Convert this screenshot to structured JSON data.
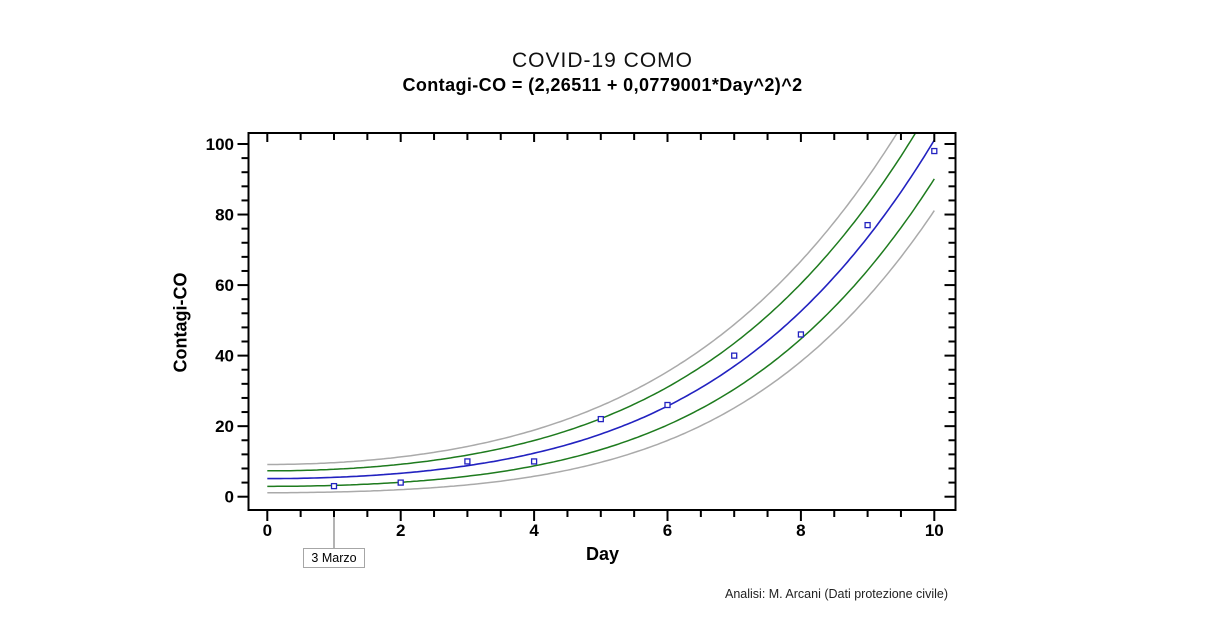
{
  "header": {
    "title": "COVID-19 COMO",
    "subtitle": "Contagi-CO = (2,26511 + 0,0779001*Day^2)^2"
  },
  "footer": {
    "credit": "Analisi: M. Arcani (Dati protezione civile)"
  },
  "annotation": {
    "label": "3 Marzo",
    "x": 1
  },
  "chart_data": {
    "type": "scatter",
    "title": "COVID-19 COMO",
    "equation": "Contagi-CO = (2,26511 + 0,0779001*Day^2)^2",
    "xlabel": "Day",
    "ylabel": "Contagi-CO",
    "xlim": [
      0,
      10
    ],
    "ylim": [
      0,
      100
    ],
    "x_ticks": [
      0,
      2,
      4,
      6,
      8,
      10
    ],
    "x_minor_step": 0.5,
    "y_ticks": [
      0,
      20,
      40,
      60,
      80,
      100
    ],
    "y_minor_step": 4,
    "grid": false,
    "points": {
      "x": [
        1,
        2,
        3,
        4,
        5,
        6,
        7,
        8,
        9,
        10
      ],
      "y": [
        3,
        4,
        10,
        10,
        22,
        26,
        40,
        46,
        77,
        98
      ]
    },
    "fit": {
      "formula_display": "(2,26511 + 0,0779001*Day^2)^2",
      "a": 2.26511,
      "b": 0.0779001
    },
    "bands": {
      "confidence": {
        "offset_base": 2.2,
        "offset_quad": 0.088
      },
      "prediction": {
        "offset_base": 4.0,
        "offset_quad": 0.16
      }
    },
    "samples": {
      "x": [
        0,
        1,
        2,
        3,
        4,
        5,
        6,
        7,
        8,
        9,
        10
      ],
      "fit": [
        5.1,
        5.5,
        6.6,
        8.8,
        12.3,
        17.7,
        25.7,
        37.0,
        52.6,
        73.8,
        101.1
      ],
      "conf_upper": [
        7.3,
        7.8,
        9.2,
        11.8,
        15.9,
        22.1,
        31.0,
        43.5,
        60.5,
        83.2,
        112.1
      ],
      "conf_lower": [
        2.9,
        3.2,
        4.1,
        5.8,
        8.7,
        13.3,
        20.3,
        30.5,
        44.8,
        64.5,
        90.1
      ],
      "pred_upper": [
        9.1,
        9.7,
        11.3,
        14.2,
        18.9,
        25.7,
        35.4,
        48.8,
        66.9,
        90.8,
        121.1
      ],
      "pred_lower": [
        1.1,
        1.3,
        2.0,
        3.4,
        5.8,
        9.7,
        15.9,
        25.1,
        38.4,
        56.9,
        81.1
      ]
    },
    "annotation": {
      "text": "3 Marzo",
      "x": 1
    },
    "colors": {
      "fit_line": "#2222c0",
      "point_marker": "#2222c0",
      "confidence_band": "#1e7b1e",
      "prediction_band": "#aaaaaa",
      "frame": "#000000",
      "callout": "#b3b3b3"
    }
  }
}
